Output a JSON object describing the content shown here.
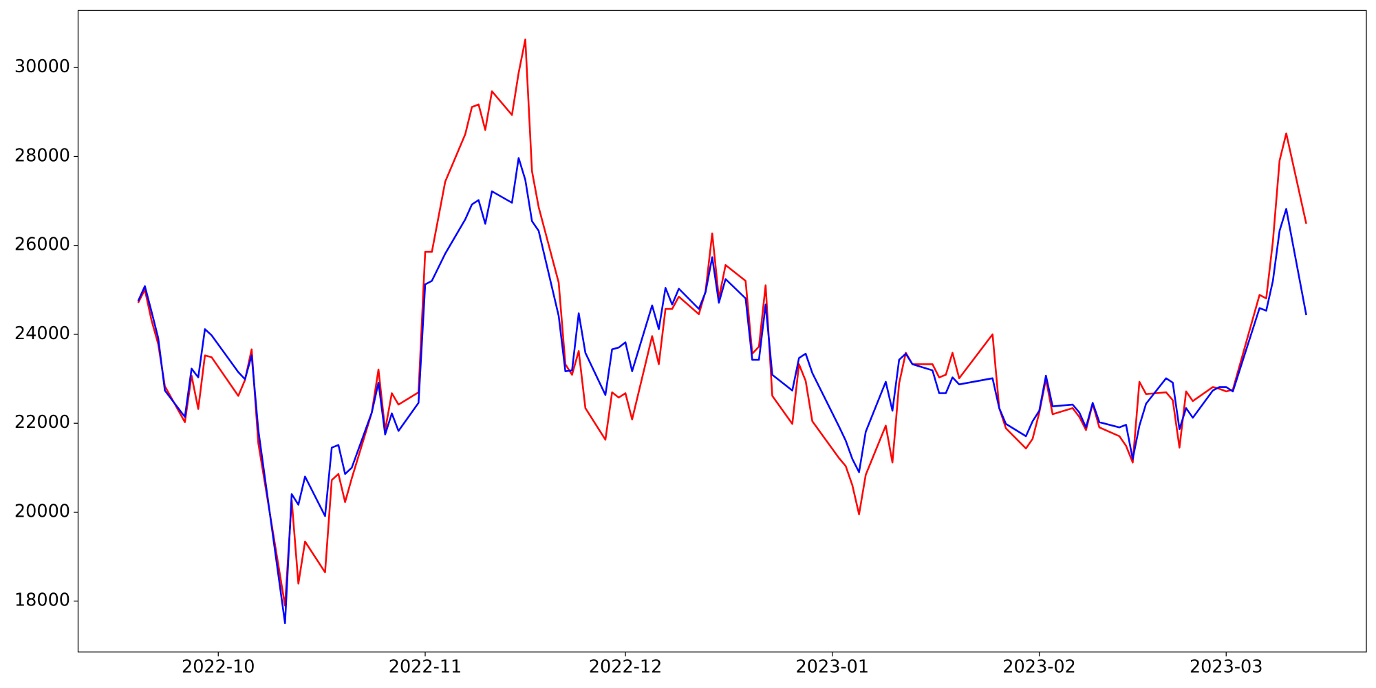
{
  "chart_data": {
    "type": "line",
    "x": [
      "2022-09-19",
      "2022-09-20",
      "2022-09-21",
      "2022-09-22",
      "2022-09-23",
      "2022-09-26",
      "2022-09-27",
      "2022-09-28",
      "2022-09-29",
      "2022-09-30",
      "2022-10-04",
      "2022-10-05",
      "2022-10-06",
      "2022-10-07",
      "2022-10-11",
      "2022-10-12",
      "2022-10-13",
      "2022-10-14",
      "2022-10-17",
      "2022-10-18",
      "2022-10-19",
      "2022-10-20",
      "2022-10-21",
      "2022-10-24",
      "2022-10-25",
      "2022-10-26",
      "2022-10-27",
      "2022-10-28",
      "2022-10-31",
      "2022-11-01",
      "2022-11-02",
      "2022-11-04",
      "2022-11-07",
      "2022-11-08",
      "2022-11-09",
      "2022-11-10",
      "2022-11-11",
      "2022-11-14",
      "2022-11-15",
      "2022-11-16",
      "2022-11-17",
      "2022-11-18",
      "2022-11-21",
      "2022-11-22",
      "2022-11-23",
      "2022-11-24",
      "2022-11-25",
      "2022-11-28",
      "2022-11-29",
      "2022-11-30",
      "2022-12-01",
      "2022-12-02",
      "2022-12-05",
      "2022-12-06",
      "2022-12-07",
      "2022-12-08",
      "2022-12-09",
      "2022-12-12",
      "2022-12-13",
      "2022-12-14",
      "2022-12-15",
      "2022-12-16",
      "2022-12-19",
      "2022-12-20",
      "2022-12-21",
      "2022-12-22",
      "2022-12-23",
      "2022-12-26",
      "2022-12-27",
      "2022-12-28",
      "2022-12-29",
      "2023-01-02",
      "2023-01-03",
      "2023-01-04",
      "2023-01-05",
      "2023-01-06",
      "2023-01-09",
      "2023-01-10",
      "2023-01-11",
      "2023-01-12",
      "2023-01-13",
      "2023-01-16",
      "2023-01-17",
      "2023-01-18",
      "2023-01-19",
      "2023-01-20",
      "2023-01-25",
      "2023-01-26",
      "2023-01-27",
      "2023-01-30",
      "2023-01-31",
      "2023-02-01",
      "2023-02-02",
      "2023-02-03",
      "2023-02-06",
      "2023-02-07",
      "2023-02-08",
      "2023-02-09",
      "2023-02-10",
      "2023-02-13",
      "2023-02-14",
      "2023-02-15",
      "2023-02-16",
      "2023-02-17",
      "2023-02-20",
      "2023-02-21",
      "2023-02-22",
      "2023-02-23",
      "2023-02-24",
      "2023-02-27",
      "2023-02-28",
      "2023-03-01",
      "2023-03-02",
      "2023-03-06",
      "2023-03-07",
      "2023-03-08",
      "2023-03-09",
      "2023-03-10",
      "2023-03-13"
    ],
    "series": [
      {
        "color": "#ff0000",
        "values": [
          24710,
          25006,
          24315,
          23782,
          22834,
          22025,
          23071,
          22321,
          23525,
          23486,
          22617,
          22973,
          23663,
          21551,
          17899,
          20268,
          18393,
          19340,
          18649,
          20722,
          20860,
          20228,
          20761,
          22242,
          23210,
          21847,
          22676,
          22420,
          22696,
          25855,
          25855,
          27434,
          28500,
          29112,
          29171,
          28598,
          29467,
          28934,
          29882,
          30632,
          27671,
          26861,
          25164,
          23328,
          23091,
          23624,
          22341,
          21630,
          22696,
          22578,
          22676,
          22085,
          23960,
          23328,
          24572,
          24572,
          24848,
          24453,
          24966,
          26269,
          24808,
          25559,
          25203,
          23565,
          23723,
          25104,
          22617,
          21986,
          23328,
          22953,
          22045,
          21216,
          21038,
          20604,
          19952,
          20840,
          21946,
          21117,
          22894,
          23585,
          23328,
          23328,
          23032,
          23091,
          23585,
          23012,
          23999,
          22341,
          21887,
          21433,
          21650,
          22242,
          22992,
          22203,
          22341,
          22143,
          21847,
          22440,
          21907,
          21709,
          21492,
          21117,
          22933,
          22657,
          22696,
          22518,
          21453,
          22716,
          22499,
          22815,
          22775,
          22716,
          22756,
          24887,
          24808,
          26091,
          27908,
          28520,
          26486
        ]
      },
      {
        "color": "#0000ff",
        "values": [
          24750,
          25085,
          24512,
          23920,
          22736,
          22143,
          23229,
          23032,
          24117,
          23979,
          23150,
          22992,
          23525,
          21847,
          17504,
          20406,
          20169,
          20801,
          19913,
          21452,
          21511,
          20860,
          21001,
          22242,
          22913,
          21749,
          22222,
          21828,
          22459,
          25124,
          25203,
          25815,
          26585,
          26921,
          27019,
          26486,
          27217,
          26960,
          27967,
          27473,
          26546,
          26328,
          24414,
          23170,
          23190,
          24473,
          23584,
          22637,
          23663,
          23703,
          23821,
          23170,
          24651,
          24117,
          25045,
          24670,
          25026,
          24572,
          24947,
          25736,
          24710,
          25243,
          24808,
          23427,
          23427,
          24670,
          23091,
          22736,
          23466,
          23565,
          23130,
          21926,
          21610,
          21196,
          20900,
          21808,
          22933,
          22282,
          23427,
          23565,
          23328,
          23190,
          22676,
          22676,
          23032,
          22874,
          23012,
          22341,
          21986,
          21709,
          22045,
          22282,
          23071,
          22380,
          22420,
          22242,
          21907,
          22459,
          22025,
          21907,
          21966,
          21196,
          21946,
          22440,
          23012,
          22913,
          21867,
          22341,
          22124,
          22736,
          22815,
          22815,
          22716,
          24591,
          24532,
          25203,
          26328,
          26822,
          24433
        ]
      }
    ],
    "xlim": [
      "2022-09-10",
      "2023-03-22"
    ],
    "xticks": [
      {
        "value": "2022-10-01",
        "label": "2022-10"
      },
      {
        "value": "2022-11-01",
        "label": "2022-11"
      },
      {
        "value": "2022-12-01",
        "label": "2022-12"
      },
      {
        "value": "2023-01-01",
        "label": "2023-01"
      },
      {
        "value": "2023-02-01",
        "label": "2023-02"
      },
      {
        "value": "2023-03-01",
        "label": "2023-03"
      }
    ],
    "ylim": [
      16855,
      31283
    ],
    "yticks": [
      18000,
      20000,
      22000,
      24000,
      26000,
      28000,
      30000
    ],
    "grid": false
  }
}
